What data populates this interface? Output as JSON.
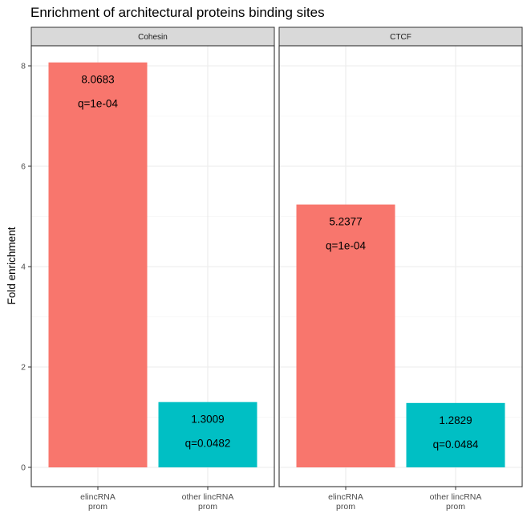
{
  "chart_data": {
    "type": "bar",
    "title": "Enrichment of architectural proteins binding sites",
    "ylabel": "Fold enrichment",
    "xlabel": "",
    "ylim": [
      0,
      8.4
    ],
    "yticks": [
      0,
      2,
      4,
      6,
      8
    ],
    "grid": true,
    "categories": [
      {
        "line1": "elincRNA",
        "line2": "prom"
      },
      {
        "line1": "other lincRNA",
        "line2": "prom"
      }
    ],
    "colors": [
      "#f8766d",
      "#00bfc4"
    ],
    "facets": [
      {
        "name": "Cohesin",
        "bars": [
          {
            "value": 8.0683,
            "value_label": "8.0683",
            "q_label": "q=1e-04"
          },
          {
            "value": 1.3009,
            "value_label": "1.3009",
            "q_label": "q=0.0482"
          }
        ]
      },
      {
        "name": "CTCF",
        "bars": [
          {
            "value": 5.2377,
            "value_label": "5.2377",
            "q_label": "q=1e-04"
          },
          {
            "value": 1.2829,
            "value_label": "1.2829",
            "q_label": "q=0.0484"
          }
        ]
      }
    ]
  }
}
